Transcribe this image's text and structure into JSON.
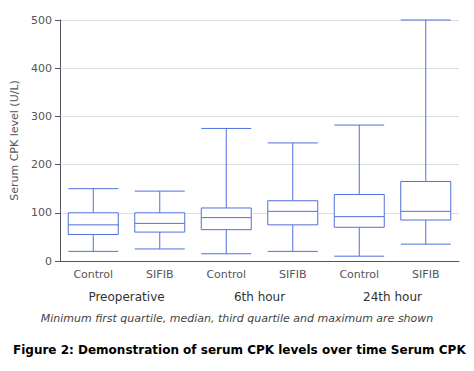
{
  "chart_data": {
    "type": "boxplot",
    "title": "Figure 2: Demonstration of serum CPK levels over time Serum CPK",
    "ylabel": "Serum CPK level (U/L)",
    "caption": "Minimum first quartile, median, third quartile and maximum are shown",
    "categories": [
      "Control",
      "SIFIB",
      "Control",
      "SIFIB",
      "Control",
      "SIFIB"
    ],
    "groups": [
      "Preoperative",
      "6th hour",
      "24th hour"
    ],
    "values": [
      [
        20,
        55,
        75,
        100,
        150
      ],
      [
        25,
        60,
        78,
        100,
        145
      ],
      [
        15,
        65,
        90,
        110,
        275
      ],
      [
        20,
        75,
        103,
        125,
        245
      ],
      [
        10,
        70,
        92,
        138,
        282
      ],
      [
        35,
        85,
        103,
        165,
        500
      ]
    ],
    "ylim": [
      0,
      500
    ],
    "yticks": [
      0,
      100,
      200,
      300,
      400,
      500
    ],
    "grid": true
  }
}
